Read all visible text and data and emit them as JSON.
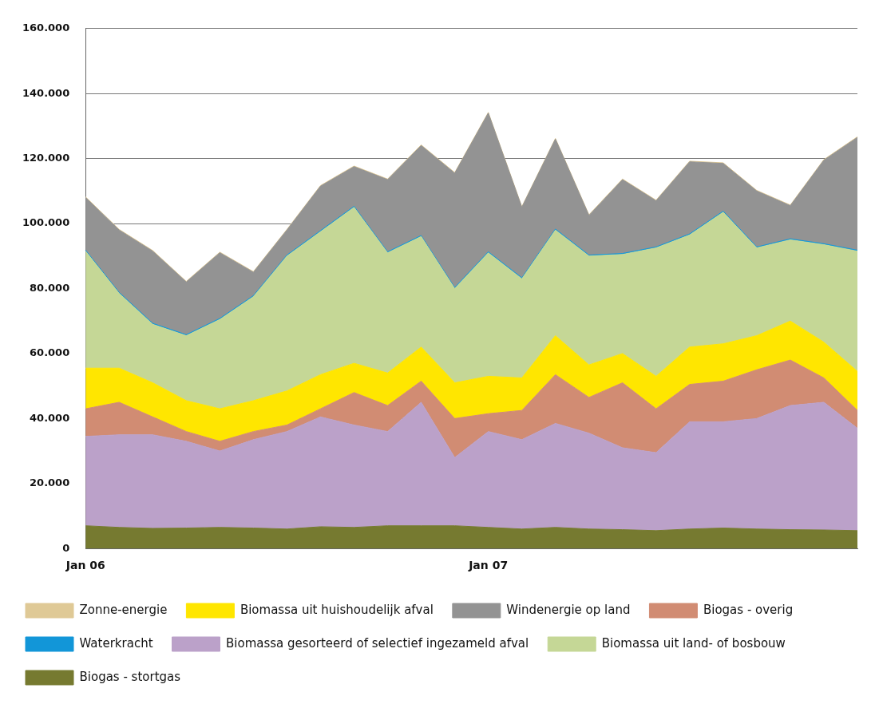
{
  "chart_data": {
    "type": "area",
    "stacked": true,
    "categories": [
      "Jan 06",
      null,
      null,
      null,
      null,
      null,
      null,
      null,
      null,
      null,
      null,
      null,
      "Jan 07",
      null,
      null,
      null,
      null,
      null,
      null,
      null,
      null,
      null,
      null,
      null
    ],
    "ylim": [
      0,
      160000
    ],
    "yticks": [
      {
        "value": 0,
        "label": "0"
      },
      {
        "value": 20000,
        "label": "20.000"
      },
      {
        "value": 40000,
        "label": "40.000"
      },
      {
        "value": 60000,
        "label": "60.000"
      },
      {
        "value": 80000,
        "label": "80.000"
      },
      {
        "value": 100000,
        "label": "100.000"
      },
      {
        "value": 120000,
        "label": "120.000"
      },
      {
        "value": 140000,
        "label": "140.000"
      },
      {
        "value": 160000,
        "label": "160.000"
      }
    ],
    "grid": "y",
    "legend": "bottom",
    "series": [
      {
        "name": "Biogas - stortgas",
        "color": "#767a30",
        "values": [
          7000,
          6500,
          6200,
          6300,
          6500,
          6300,
          6000,
          6700,
          6500,
          7000,
          7000,
          7000,
          6500,
          6000,
          6500,
          6000,
          5800,
          5500,
          6000,
          6300,
          6000,
          5800,
          5700,
          5500
        ]
      },
      {
        "name": "Biomassa gesorteerd of selectief ingezameld afval",
        "color": "#bba1c9",
        "values": [
          27500,
          28500,
          28800,
          26700,
          23500,
          27200,
          30000,
          33800,
          31500,
          29000,
          38000,
          21000,
          29500,
          27500,
          32000,
          29500,
          25200,
          24000,
          33000,
          32700,
          34000,
          38200,
          39300,
          31500
        ]
      },
      {
        "name": "Biogas - overig",
        "color": "#d18c73",
        "values": [
          8500,
          10000,
          5500,
          3000,
          3000,
          2500,
          2000,
          2500,
          10000,
          8000,
          6500,
          12000,
          5500,
          9000,
          15000,
          11000,
          20000,
          13500,
          11500,
          12500,
          15000,
          14000,
          7500,
          5500
        ]
      },
      {
        "name": "Biomassa uit huishoudelijk afval",
        "color": "#ffe600",
        "values": [
          12500,
          10500,
          10500,
          9500,
          10000,
          9500,
          10500,
          10500,
          9000,
          10000,
          10500,
          11000,
          11500,
          10000,
          12000,
          10000,
          9000,
          10000,
          11500,
          11500,
          10500,
          12000,
          11000,
          12000
        ]
      },
      {
        "name": "Biomassa uit land- of bosbouw",
        "color": "#c5d796",
        "values": [
          36000,
          23000,
          18000,
          20000,
          27500,
          32000,
          41500,
          44000,
          48000,
          37000,
          34000,
          29000,
          38000,
          30500,
          32500,
          33500,
          30500,
          39500,
          34500,
          40500,
          27000,
          25000,
          30000,
          37000
        ]
      },
      {
        "name": "Waterkracht",
        "color": "#1296d8",
        "values": [
          300,
          300,
          300,
          300,
          300,
          300,
          300,
          300,
          300,
          300,
          300,
          300,
          300,
          300,
          300,
          300,
          300,
          300,
          300,
          300,
          300,
          300,
          300,
          300
        ]
      },
      {
        "name": "Windenergie op land",
        "color": "#939393",
        "values": [
          16200,
          19200,
          22200,
          16200,
          20200,
          7200,
          7700,
          13700,
          12200,
          22200,
          27700,
          35200,
          42700,
          21700,
          27700,
          12200,
          22700,
          14200,
          22200,
          14700,
          17200,
          10200,
          25700,
          34700
        ]
      },
      {
        "name": "Zonne-energie",
        "color": "#dfc996",
        "values": [
          200,
          200,
          200,
          200,
          200,
          200,
          200,
          200,
          200,
          200,
          200,
          200,
          200,
          200,
          200,
          200,
          200,
          200,
          200,
          200,
          200,
          200,
          200,
          200
        ]
      }
    ]
  }
}
